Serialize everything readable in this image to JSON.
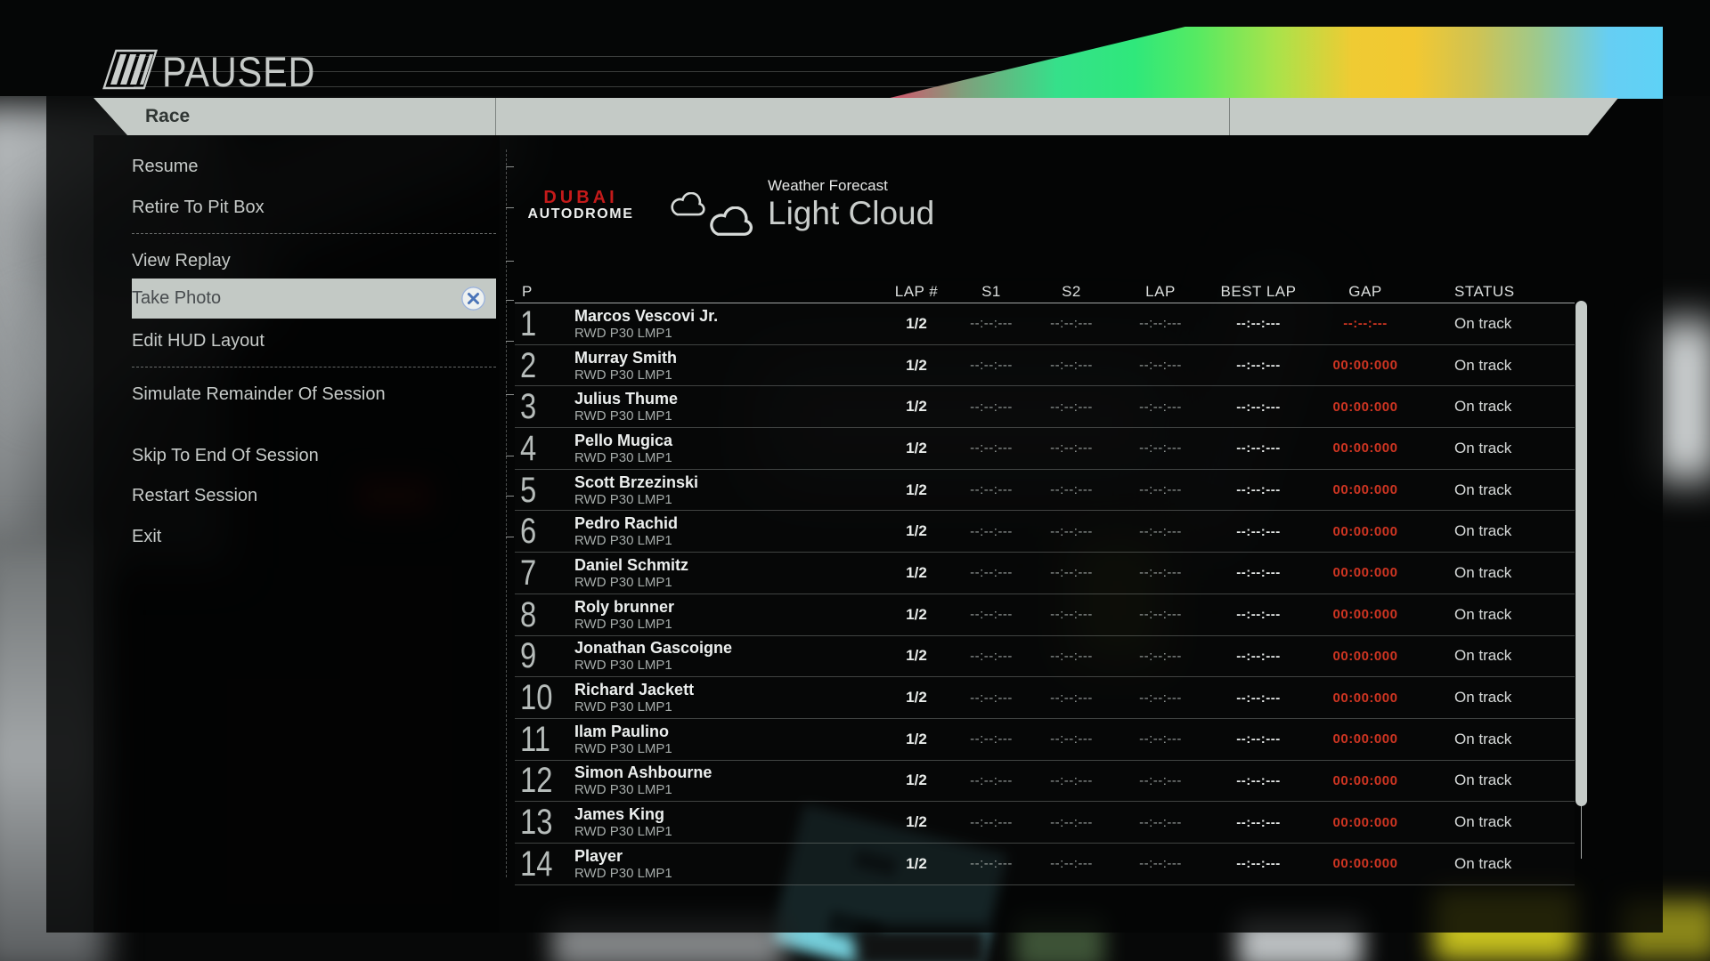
{
  "header": {
    "paused_label": "PAUSED",
    "active_tab": "Race"
  },
  "menu": {
    "items": [
      {
        "label": "Resume"
      },
      {
        "label": "Retire To Pit Box"
      },
      {
        "label": "View Replay"
      },
      {
        "label": "Take Photo",
        "selected": true
      },
      {
        "label": "Edit HUD Layout"
      },
      {
        "label": "Simulate Remainder Of Session"
      },
      {
        "label": "Skip To End Of Session"
      },
      {
        "label": "Restart Session"
      },
      {
        "label": "Exit"
      }
    ]
  },
  "content": {
    "track_logo": {
      "line1": "DUBAI",
      "line2": "AUTODROME"
    },
    "weather": {
      "label": "Weather Forecast",
      "value": "Light Cloud",
      "icons": [
        "cloud-icon",
        "cloud-icon"
      ]
    },
    "standings": {
      "columns": [
        "P",
        "LAP #",
        "S1",
        "S2",
        "LAP",
        "BEST LAP",
        "GAP",
        "STATUS"
      ],
      "rows": [
        {
          "pos": "1",
          "name": "Marcos Vescovi Jr.",
          "car": "RWD P30 LMP1",
          "lap_count": "1/2",
          "s1": "--:--:---",
          "s2": "--:--:---",
          "lap": "--:--:---",
          "best_lap": "--:--:---",
          "gap": "--:--:---",
          "status": "On track"
        },
        {
          "pos": "2",
          "name": "Murray Smith",
          "car": "RWD P30 LMP1",
          "lap_count": "1/2",
          "s1": "--:--:---",
          "s2": "--:--:---",
          "lap": "--:--:---",
          "best_lap": "--:--:---",
          "gap": "00:00:000",
          "status": "On track"
        },
        {
          "pos": "3",
          "name": "Julius Thume",
          "car": "RWD P30 LMP1",
          "lap_count": "1/2",
          "s1": "--:--:---",
          "s2": "--:--:---",
          "lap": "--:--:---",
          "best_lap": "--:--:---",
          "gap": "00:00:000",
          "status": "On track"
        },
        {
          "pos": "4",
          "name": "Pello Mugica",
          "car": "RWD P30 LMP1",
          "lap_count": "1/2",
          "s1": "--:--:---",
          "s2": "--:--:---",
          "lap": "--:--:---",
          "best_lap": "--:--:---",
          "gap": "00:00:000",
          "status": "On track"
        },
        {
          "pos": "5",
          "name": "Scott Brzezinski",
          "car": "RWD P30 LMP1",
          "lap_count": "1/2",
          "s1": "--:--:---",
          "s2": "--:--:---",
          "lap": "--:--:---",
          "best_lap": "--:--:---",
          "gap": "00:00:000",
          "status": "On track"
        },
        {
          "pos": "6",
          "name": "Pedro Rachid",
          "car": "RWD P30 LMP1",
          "lap_count": "1/2",
          "s1": "--:--:---",
          "s2": "--:--:---",
          "lap": "--:--:---",
          "best_lap": "--:--:---",
          "gap": "00:00:000",
          "status": "On track"
        },
        {
          "pos": "7",
          "name": "Daniel Schmitz",
          "car": "RWD P30 LMP1",
          "lap_count": "1/2",
          "s1": "--:--:---",
          "s2": "--:--:---",
          "lap": "--:--:---",
          "best_lap": "--:--:---",
          "gap": "00:00:000",
          "status": "On track"
        },
        {
          "pos": "8",
          "name": "Roly brunner",
          "car": "RWD P30 LMP1",
          "lap_count": "1/2",
          "s1": "--:--:---",
          "s2": "--:--:---",
          "lap": "--:--:---",
          "best_lap": "--:--:---",
          "gap": "00:00:000",
          "status": "On track"
        },
        {
          "pos": "9",
          "name": "Jonathan Gascoigne",
          "car": "RWD P30 LMP1",
          "lap_count": "1/2",
          "s1": "--:--:---",
          "s2": "--:--:---",
          "lap": "--:--:---",
          "best_lap": "--:--:---",
          "gap": "00:00:000",
          "status": "On track"
        },
        {
          "pos": "10",
          "name": "Richard Jackett",
          "car": "RWD P30 LMP1",
          "lap_count": "1/2",
          "s1": "--:--:---",
          "s2": "--:--:---",
          "lap": "--:--:---",
          "best_lap": "--:--:---",
          "gap": "00:00:000",
          "status": "On track"
        },
        {
          "pos": "11",
          "name": "Ilam Paulino",
          "car": "RWD P30 LMP1",
          "lap_count": "1/2",
          "s1": "--:--:---",
          "s2": "--:--:---",
          "lap": "--:--:---",
          "best_lap": "--:--:---",
          "gap": "00:00:000",
          "status": "On track"
        },
        {
          "pos": "12",
          "name": "Simon Ashbourne",
          "car": "RWD P30 LMP1",
          "lap_count": "1/2",
          "s1": "--:--:---",
          "s2": "--:--:---",
          "lap": "--:--:---",
          "best_lap": "--:--:---",
          "gap": "00:00:000",
          "status": "On track"
        },
        {
          "pos": "13",
          "name": "James King",
          "car": "RWD P30 LMP1",
          "lap_count": "1/2",
          "s1": "--:--:---",
          "s2": "--:--:---",
          "lap": "--:--:---",
          "best_lap": "--:--:---",
          "gap": "00:00:000",
          "status": "On track"
        },
        {
          "pos": "14",
          "name": "Player",
          "car": "RWD P30 LMP1",
          "lap_count": "1/2",
          "s1": "--:--:---",
          "s2": "--:--:---",
          "lap": "--:--:---",
          "best_lap": "--:--:---",
          "gap": "00:00:000",
          "status": "On track"
        }
      ]
    }
  },
  "colors": {
    "gap_red": "#cf3522",
    "selection_blue": "#4a74b8",
    "tab_gray": "#c4cac6",
    "logo_red": "#c41a1a"
  }
}
